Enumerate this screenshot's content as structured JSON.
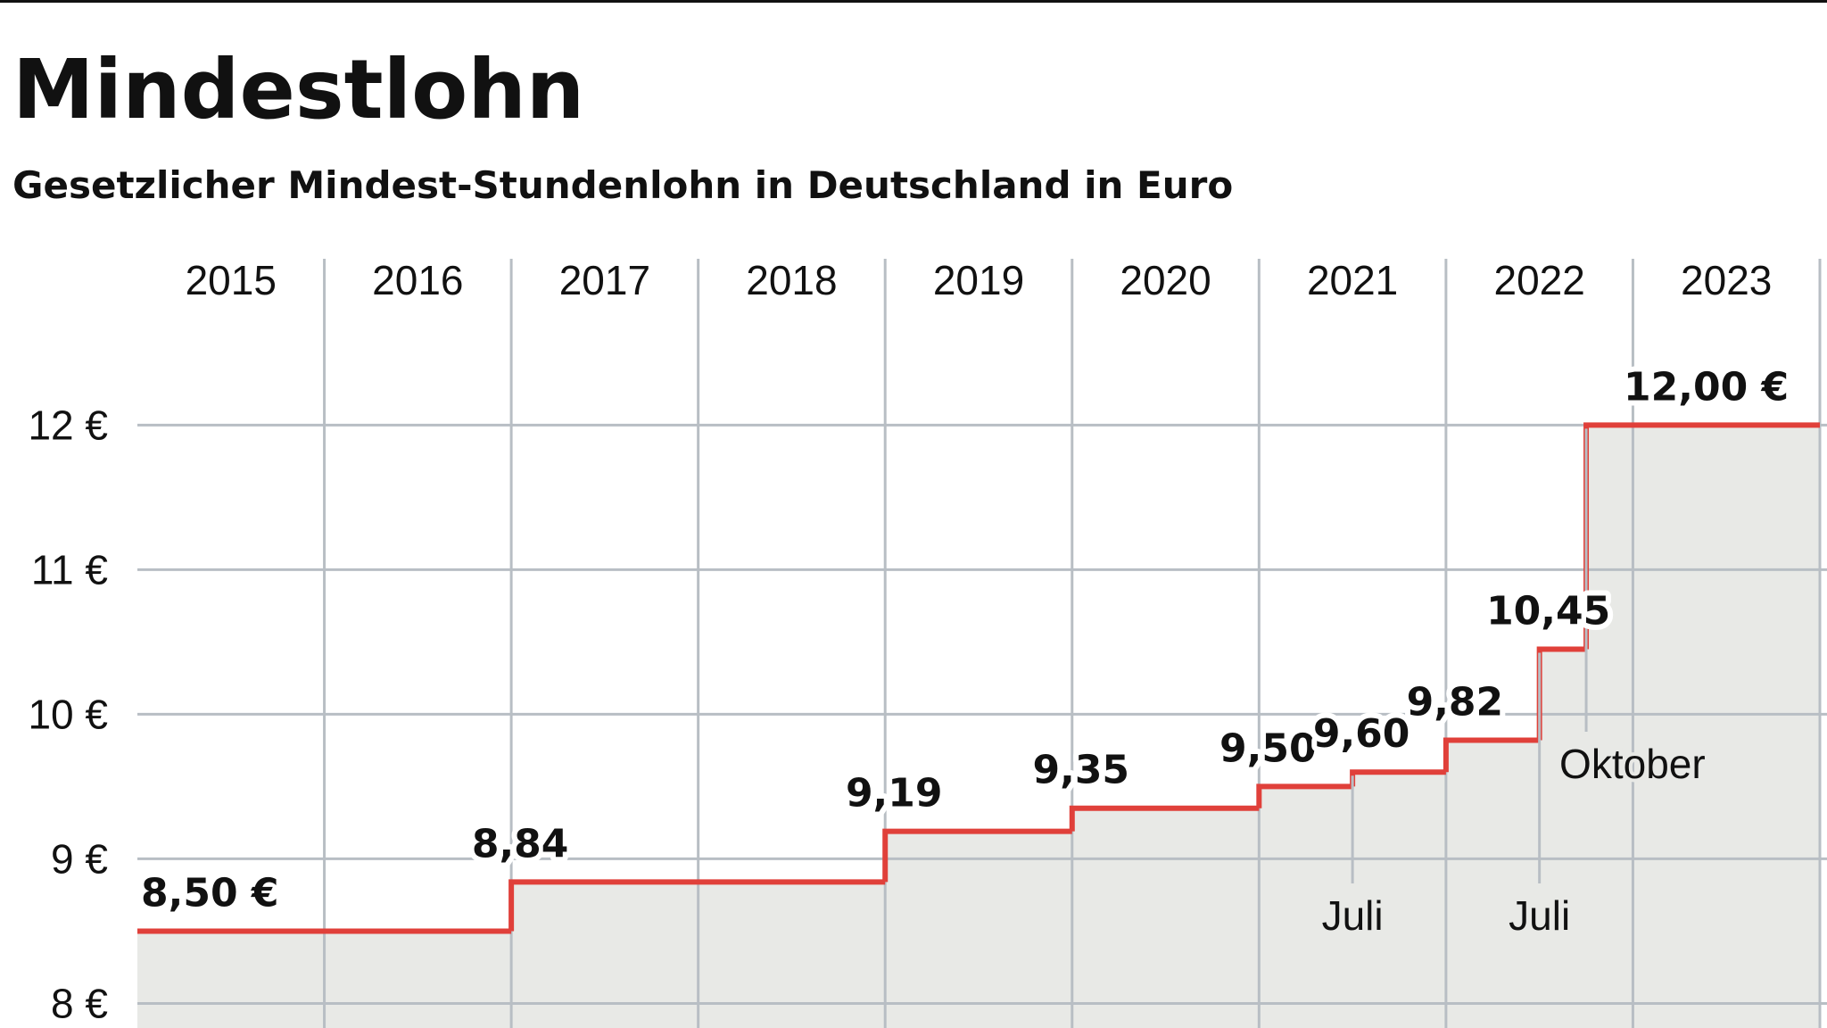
{
  "chart_data": {
    "type": "step",
    "title": "Mindestlohn",
    "subtitle": "Gesetzlicher Mindest-Stundenlohn in Deutschland in Euro",
    "categories": [
      "2015",
      "2016",
      "2017",
      "2018",
      "2019",
      "2020",
      "2021",
      "2022",
      "2023"
    ],
    "x": [
      2015,
      2017,
      2019,
      2020,
      2021,
      2021.5,
      2022,
      2022.5,
      2022.75
    ],
    "values": [
      8.5,
      8.84,
      9.19,
      9.35,
      9.5,
      9.6,
      9.82,
      10.45,
      12.0
    ],
    "value_labels": [
      "8,50 €",
      "8,84",
      "9,19",
      "9,35",
      "9,50",
      "9,60",
      "9,82",
      "10,45",
      "12,00 €"
    ],
    "color": "#e0403a",
    "area_color": "#e8e9e6",
    "xlim": [
      2015,
      2024
    ],
    "xticks": [
      2016,
      2017,
      2018,
      2019,
      2020,
      2021,
      2022,
      2023,
      2024
    ],
    "ylim": [
      7.83,
      13.15
    ],
    "yticks": [
      {
        "value": 8,
        "label": "8 €"
      },
      {
        "value": 9,
        "label": "9 €"
      },
      {
        "value": 10,
        "label": "10 €"
      },
      {
        "value": 11,
        "label": "11 €"
      },
      {
        "value": 12,
        "label": "12 €"
      }
    ],
    "grid": true,
    "annotations": [
      {
        "text": "Juli",
        "x": 2021.5
      },
      {
        "text": "Juli",
        "x": 2022.5
      },
      {
        "text": "Oktober",
        "x": 2022.75
      }
    ]
  }
}
